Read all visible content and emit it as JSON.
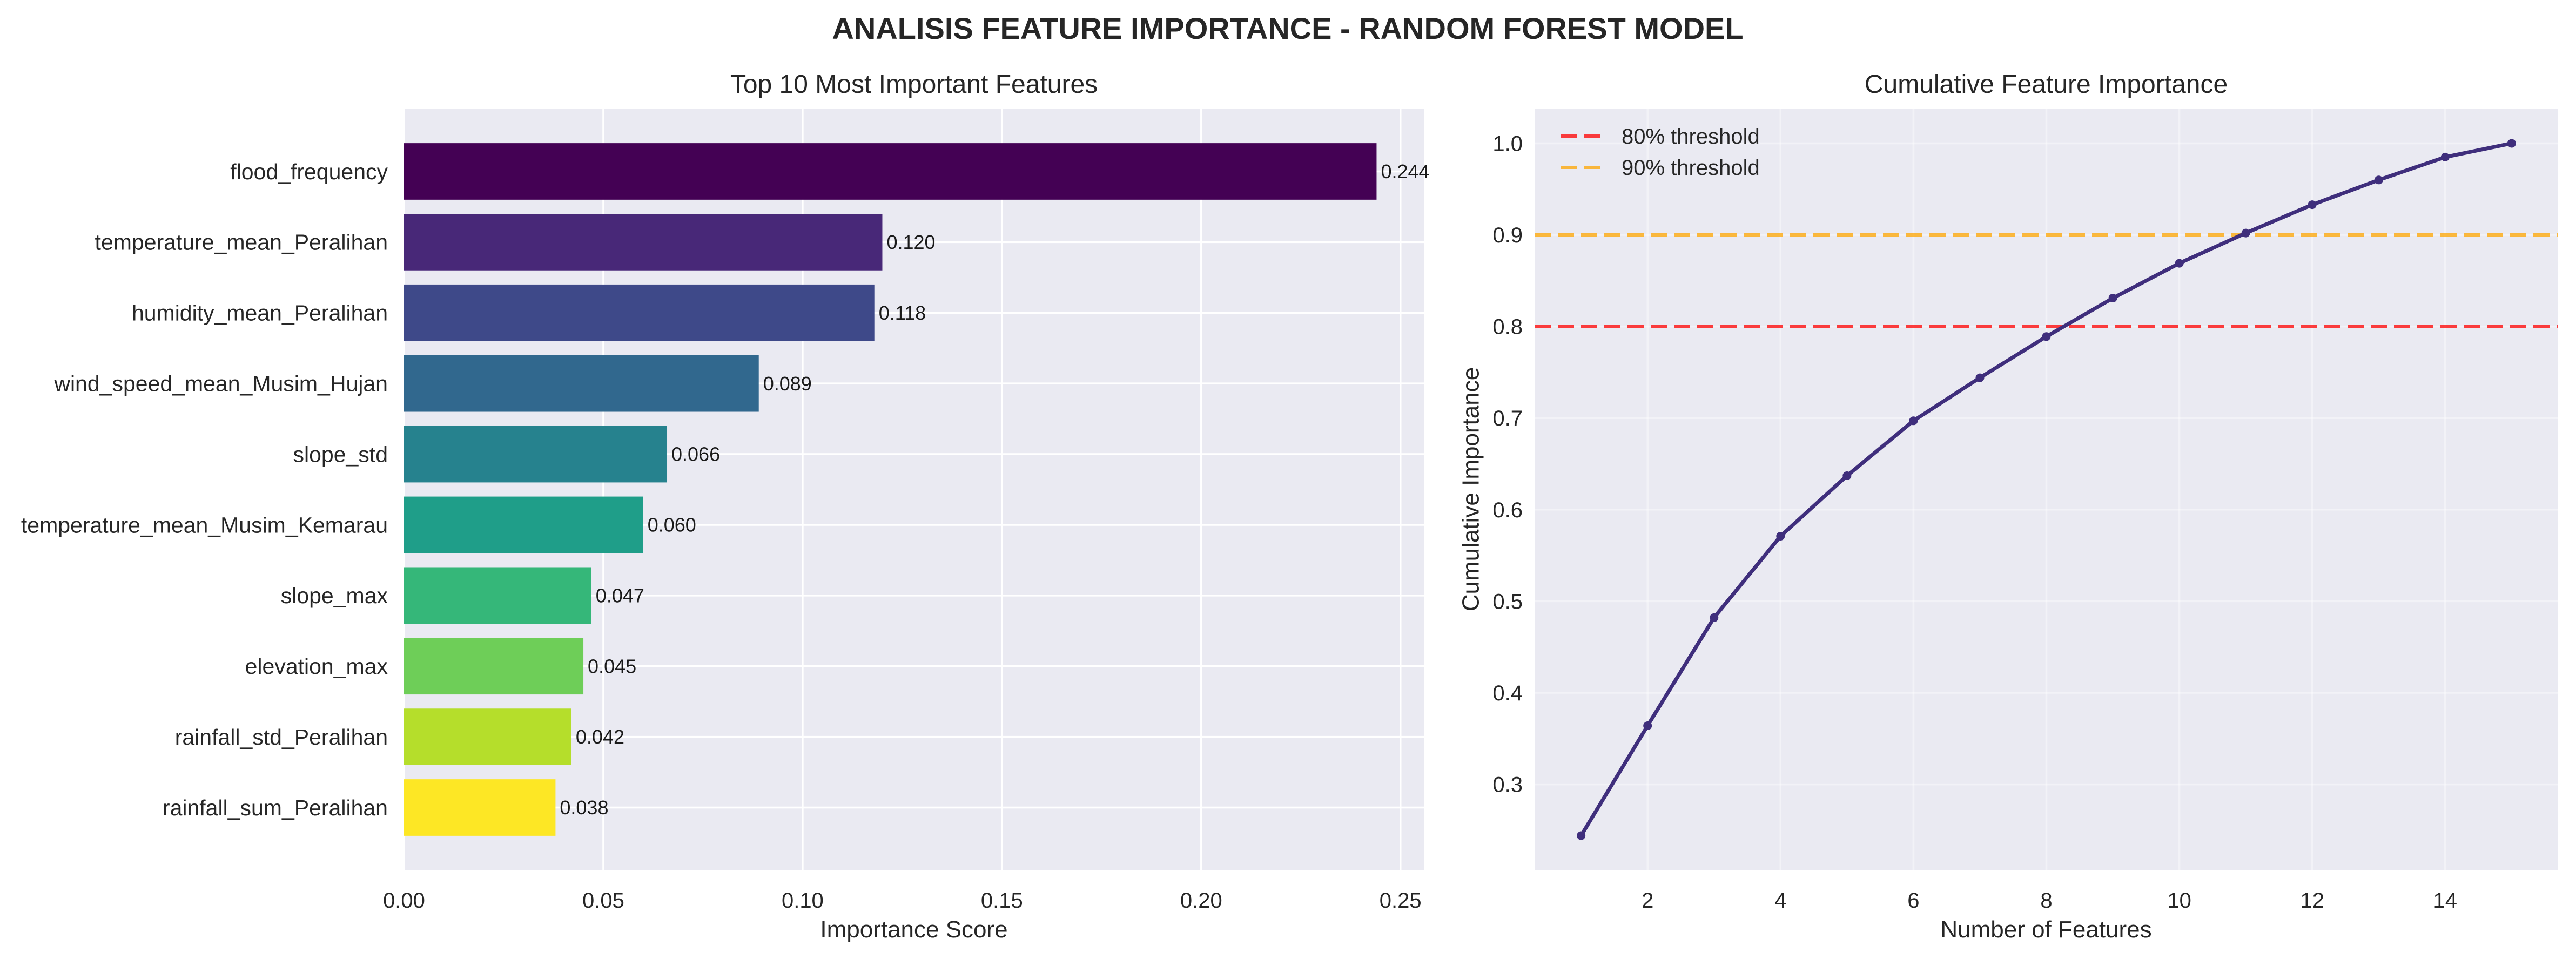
{
  "title": "ANALISIS FEATURE IMPORTANCE - RANDOM FOREST MODEL",
  "style": {
    "plot_background": "#eaeaf2",
    "grid_color": "#ffffff"
  },
  "chart_data": [
    {
      "type": "bar",
      "orientation": "horizontal",
      "title": "Top 10 Most Important Features",
      "xlabel": "Importance Score",
      "categories": [
        "flood_frequency",
        "temperature_mean_Peralihan",
        "humidity_mean_Peralihan",
        "wind_speed_mean_Musim_Hujan",
        "slope_std",
        "temperature_mean_Musim_Kemarau",
        "slope_max",
        "elevation_max",
        "rainfall_std_Peralihan",
        "rainfall_sum_Peralihan"
      ],
      "values": [
        0.244,
        0.12,
        0.118,
        0.089,
        0.066,
        0.06,
        0.047,
        0.045,
        0.042,
        0.038
      ],
      "value_labels": [
        "0.244",
        "0.120",
        "0.118",
        "0.089",
        "0.066",
        "0.060",
        "0.047",
        "0.045",
        "0.042",
        "0.038"
      ],
      "colors": [
        "#440154",
        "#482878",
        "#3e4989",
        "#31688e",
        "#26828e",
        "#1f9e89",
        "#35b779",
        "#6ece58",
        "#b5de2b",
        "#fde725"
      ],
      "xlim": [
        0,
        0.256
      ],
      "xticks": [
        0,
        0.05,
        0.1,
        0.15,
        0.2,
        0.25
      ],
      "xtick_labels": [
        "0.00",
        "0.05",
        "0.10",
        "0.15",
        "0.20",
        "0.25"
      ],
      "grid": true
    },
    {
      "type": "line",
      "title": "Cumulative Feature Importance",
      "xlabel": "Number of Features",
      "ylabel": "Cumulative Importance",
      "x": [
        1,
        2,
        3,
        4,
        5,
        6,
        7,
        8,
        9,
        10,
        11,
        12,
        13,
        14,
        15
      ],
      "series": [
        {
          "values": [
            0.244,
            0.364,
            0.482,
            0.571,
            0.637,
            0.697,
            0.744,
            0.789,
            0.831,
            0.869,
            0.902,
            0.933,
            0.96,
            0.985,
            1.0
          ],
          "color": "#3f2e7c"
        }
      ],
      "thresholds": [
        {
          "name": "80% threshold",
          "value": 0.8,
          "color": "#ff0000"
        },
        {
          "name": "90% threshold",
          "value": 0.9,
          "color": "#ffa500"
        }
      ],
      "xlim": [
        0.3,
        15.7
      ],
      "ylim": [
        0.206,
        1.038
      ],
      "xticks": [
        2,
        4,
        6,
        8,
        10,
        12,
        14
      ],
      "xtick_labels": [
        "2",
        "4",
        "6",
        "8",
        "10",
        "12",
        "14"
      ],
      "yticks": [
        0.3,
        0.4,
        0.5,
        0.6,
        0.7,
        0.8,
        0.9,
        1.0
      ],
      "ytick_labels": [
        "0.3",
        "0.4",
        "0.5",
        "0.6",
        "0.7",
        "0.8",
        "0.9",
        "1.0"
      ],
      "legend": "top-left",
      "grid": true
    }
  ]
}
